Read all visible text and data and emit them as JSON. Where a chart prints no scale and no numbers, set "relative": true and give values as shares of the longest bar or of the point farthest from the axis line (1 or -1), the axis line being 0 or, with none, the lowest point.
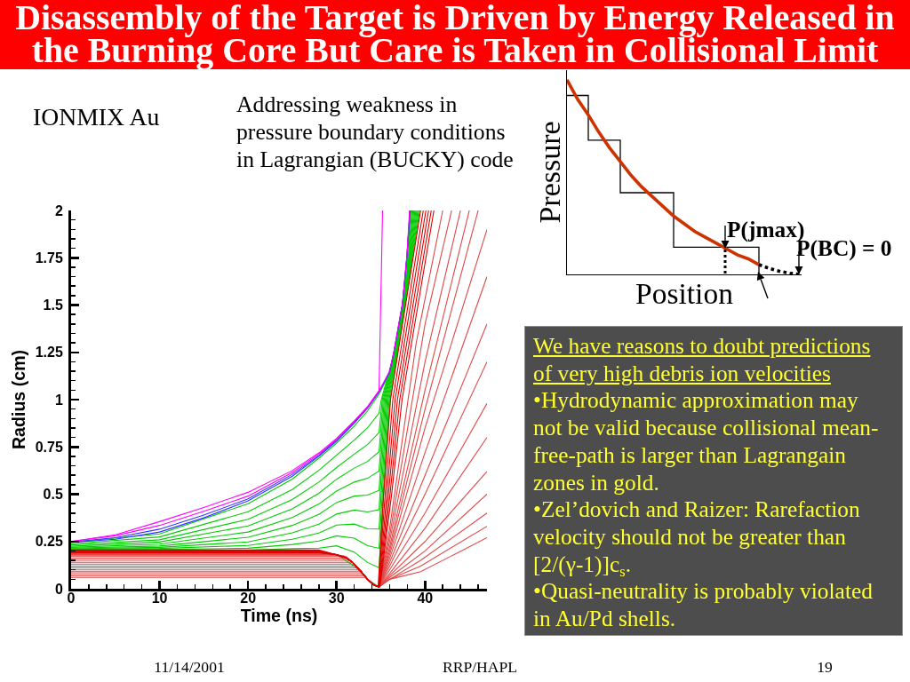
{
  "chart_data": [
    {
      "type": "line",
      "title": "Disassembly of the Target is Driven by Energy Released in the Burning Core But Care is Taken in Collisional Limit",
      "xlabel": "Time (ns)",
      "ylabel": "Radius (cm)",
      "xlim": [
        0,
        47
      ],
      "ylim": [
        0,
        2
      ],
      "xticks": [
        0,
        {
          "value": 2,
          "label": null
        },
        {
          "value": 4,
          "label": null
        },
        {
          "value": 6,
          "label": null
        },
        {
          "value": 8,
          "label": null
        },
        10,
        {
          "value": 12,
          "label": null
        },
        {
          "value": 14,
          "label": null
        },
        {
          "value": 16,
          "label": null
        },
        {
          "value": 18,
          "label": null
        },
        20,
        {
          "value": 22,
          "label": null
        },
        {
          "value": 24,
          "label": null
        },
        {
          "value": 26,
          "label": null
        },
        {
          "value": 28,
          "label": null
        },
        30,
        {
          "value": 32,
          "label": null
        },
        {
          "value": 34,
          "label": null
        },
        {
          "value": 36,
          "label": null
        },
        {
          "value": 38,
          "label": null
        },
        40,
        {
          "value": 42,
          "label": null
        },
        {
          "value": 44,
          "label": null
        },
        {
          "value": 46,
          "label": null
        }
      ],
      "yticks": [
        0,
        {
          "value": 0.05,
          "label": null
        },
        {
          "value": 0.1,
          "label": null
        },
        {
          "value": 0.15,
          "label": null
        },
        {
          "value": 0.2,
          "label": null
        },
        0.25,
        {
          "value": 0.3,
          "label": null
        },
        {
          "value": 0.35,
          "label": null
        },
        {
          "value": 0.4,
          "label": null
        },
        {
          "value": 0.45,
          "label": null
        },
        0.5,
        {
          "value": 0.55,
          "label": null
        },
        {
          "value": 0.6,
          "label": null
        },
        {
          "value": 0.65,
          "label": null
        },
        {
          "value": 0.7,
          "label": null
        },
        0.75,
        {
          "value": 0.8,
          "label": null
        },
        {
          "value": 0.85,
          "label": null
        },
        {
          "value": 0.9,
          "label": null
        },
        {
          "value": 0.95,
          "label": null
        },
        1,
        {
          "value": 1.05,
          "label": null
        },
        {
          "value": 1.1,
          "label": null
        },
        {
          "value": 1.15,
          "label": null
        },
        {
          "value": 1.2,
          "label": null
        },
        1.25,
        {
          "value": 1.3,
          "label": null
        },
        {
          "value": 1.35,
          "label": null
        },
        {
          "value": 1.4,
          "label": null
        },
        {
          "value": 1.45,
          "label": null
        },
        1.5,
        {
          "value": 1.55,
          "label": null
        },
        {
          "value": 1.6,
          "label": null
        },
        {
          "value": 1.65,
          "label": null
        },
        {
          "value": 1.7,
          "label": null
        },
        1.75,
        {
          "value": 1.8,
          "label": null
        },
        {
          "value": 1.85,
          "label": null
        },
        {
          "value": 1.9,
          "label": null
        },
        {
          "value": 1.95,
          "label": null
        },
        2
      ],
      "annotations": [
        "IONMIX Au",
        "Addressing weakness in pressure boundary conditions in Lagrangian (BUCKY) code",
        "11/14/2001",
        "RRP/HAPL",
        "19"
      ],
      "series": [
        {
          "color": "#00cc00",
          "x": [
            0,
            10,
            20,
            25,
            28,
            30,
            32,
            33.5,
            34.8,
            35.5,
            36.7,
            37.6,
            38.27,
            38.85,
            null,
            0,
            10,
            20,
            25,
            28,
            30,
            32,
            33.5,
            34.8,
            35.39,
            36.66,
            37.57,
            38.2,
            38.74,
            null,
            0,
            10,
            20,
            25,
            28,
            30,
            32,
            33.5,
            34.8,
            35.28,
            36.62,
            37.54,
            38.14,
            38.63,
            null,
            0,
            10,
            20,
            25,
            28,
            30,
            32,
            33.5,
            34.8,
            35.17,
            36.58,
            37.51,
            38.08,
            38.52,
            null,
            0,
            10,
            20,
            25,
            28,
            30,
            32,
            33.5,
            34.8,
            35.06,
            36.54,
            37.48,
            38.01,
            38.41,
            null,
            0,
            10,
            20,
            25,
            28,
            30,
            32,
            33.5,
            34.8,
            36,
            36.5,
            37.45,
            37.95,
            38.3,
            null,
            0,
            10,
            20,
            25,
            28,
            30,
            32,
            33.5,
            34.8,
            35.61,
            36.74,
            37.63,
            38.33,
            38.96,
            null,
            0,
            10,
            20,
            25,
            28,
            30,
            32,
            33.5,
            34.8,
            35.72,
            36.78,
            37.66,
            38.39,
            39.07,
            null,
            0,
            10,
            20,
            25,
            28,
            30,
            32,
            33.5,
            34.8,
            35.83,
            36.82,
            37.69,
            38.45,
            39.18,
            null,
            0,
            10,
            20,
            25,
            28,
            30,
            32,
            33.5,
            34.8,
            35.94,
            36.86,
            37.72,
            38.52,
            39.29,
            null,
            0,
            10,
            20,
            25,
            28,
            30,
            32,
            33.5,
            34.8,
            35.3,
            36.05,
            36.9,
            37.75,
            38.58,
            39.4
          ],
          "values": [
            0.215,
            0.226,
            0.272,
            0.335,
            0.393,
            0.456,
            0.49,
            0.495,
            0.52,
            1,
            1.25,
            1.5,
            1.75,
            2,
            null,
            0.219,
            0.236,
            0.3,
            0.377,
            0.448,
            0.516,
            0.564,
            0.584,
            0.622,
            1,
            1.25,
            1.5,
            1.75,
            2,
            null,
            0.225,
            0.247,
            0.332,
            0.423,
            0.505,
            0.579,
            0.638,
            0.673,
            0.724,
            1,
            1.25,
            1.5,
            1.75,
            2,
            null,
            0.231,
            0.259,
            0.367,
            0.472,
            0.564,
            0.641,
            0.712,
            0.762,
            0.826,
            1,
            1.25,
            1.5,
            1.75,
            2,
            null,
            0.237,
            0.274,
            0.407,
            0.525,
            0.626,
            0.706,
            0.786,
            0.851,
            0.928,
            1,
            1.25,
            1.5,
            1.75,
            2,
            null,
            0.245,
            0.29,
            0.45,
            0.58,
            0.69,
            0.77,
            0.86,
            0.94,
            1.03,
            1.14,
            1.25,
            1.5,
            1.75,
            2,
            null,
            0.211,
            0.219,
            0.248,
            0.296,
            0.342,
            0.395,
            0.416,
            0.406,
            0.418,
            1,
            1.25,
            1.5,
            1.75,
            2,
            null,
            0.209,
            0.213,
            0.229,
            0.262,
            0.295,
            0.337,
            0.342,
            0.317,
            0.316,
            1,
            1.25,
            1.5,
            1.75,
            2,
            null,
            0.207,
            0.208,
            0.214,
            0.234,
            0.252,
            0.28,
            0.268,
            0.228,
            0.214,
            1,
            1.25,
            1.5,
            1.75,
            2,
            null,
            0.205,
            0.206,
            0.204,
            0.212,
            0.215,
            0.227,
            0.194,
            0.139,
            0.112,
            1,
            1.25,
            1.5,
            1.75,
            2,
            null,
            0.205,
            0.205,
            0.2,
            0.2,
            0.19,
            0.18,
            0.12,
            0.05,
            0.01,
            0.49,
            1,
            1.25,
            1.5,
            1.75,
            2
          ]
        },
        {
          "color": "#e04848",
          "x": [
            0,
            33.3,
            33.5,
            34.2,
            34.8,
            36,
            39.5,
            47,
            null,
            0,
            33.2,
            33.5,
            34.2,
            34.8,
            36,
            39.5,
            47,
            null,
            0,
            33,
            33.5,
            34.2,
            34.8,
            36,
            39.5,
            47,
            null,
            0,
            32.8,
            33.5,
            34.2,
            34.8,
            36,
            40,
            47,
            null,
            0,
            32.6,
            33.5,
            34.2,
            34.8,
            36,
            40,
            47,
            null,
            0,
            32.4,
            32.8,
            33.5,
            34.2,
            34.8,
            36,
            40,
            47,
            null,
            0,
            32.2,
            32.8,
            33.5,
            34.2,
            34.8,
            36,
            40,
            47,
            null,
            0,
            32,
            32.8,
            33.5,
            34.2,
            34.8,
            36,
            40,
            47,
            null,
            0,
            31.8,
            32.8,
            33.5,
            34.2,
            34.8,
            36,
            40,
            47,
            null,
            0,
            31.5,
            31.8,
            32.8,
            33.5,
            34.2,
            34.8,
            36,
            40,
            47,
            null,
            0,
            31.3,
            31.8,
            32.8,
            33.5,
            34.2,
            34.8,
            36,
            40,
            47,
            null,
            0,
            31.1,
            31.8,
            32.8,
            33.5,
            34.2,
            34.8,
            36,
            40,
            46,
            null,
            0,
            30.8,
            31.8,
            32.8,
            33.5,
            34.2,
            34.8,
            36,
            40,
            45,
            null,
            0,
            30,
            31,
            31.8,
            32.8,
            33.5,
            34.2,
            34.8,
            36,
            40,
            44,
            null,
            0,
            29,
            30,
            31,
            31.8,
            32.8,
            33.5,
            34.2,
            34.8,
            36,
            40,
            43,
            null,
            0,
            28.5,
            30,
            31,
            31.8,
            32.8,
            33.5,
            34.2,
            34.8,
            36,
            39,
            42
          ],
          "values": [
            0.06,
            0.06,
            0.05,
            0.02,
            0.01,
            0.05,
            0.09,
            0.27,
            null,
            0.07,
            0.07,
            0.05,
            0.02,
            0.01,
            0.05,
            0.12,
            0.33,
            null,
            0.08,
            0.08,
            0.05,
            0.02,
            0.01,
            0.05,
            0.15,
            0.4,
            null,
            0.09,
            0.09,
            0.05,
            0.02,
            0.01,
            0.06,
            0.2,
            0.5,
            null,
            0.1,
            0.1,
            0.05,
            0.02,
            0.01,
            0.07,
            0.25,
            0.62,
            null,
            0.11,
            0.11,
            0.09,
            0.05,
            0.02,
            0.01,
            0.08,
            0.32,
            0.8,
            null,
            0.12,
            0.12,
            0.09,
            0.05,
            0.02,
            0.01,
            0.1,
            0.4,
            0.98,
            null,
            0.13,
            0.13,
            0.09,
            0.05,
            0.02,
            0.01,
            0.12,
            0.5,
            1.2,
            null,
            0.14,
            0.14,
            0.09,
            0.05,
            0.02,
            0.01,
            0.14,
            0.6,
            1.4,
            null,
            0.15,
            0.15,
            0.14,
            0.09,
            0.05,
            0.02,
            0.01,
            0.16,
            0.72,
            1.65,
            null,
            0.16,
            0.16,
            0.14,
            0.09,
            0.05,
            0.02,
            0.01,
            0.18,
            0.85,
            1.9,
            null,
            0.17,
            0.17,
            0.14,
            0.09,
            0.05,
            0.02,
            0.01,
            0.2,
            0.95,
            2,
            null,
            0.175,
            0.175,
            0.14,
            0.09,
            0.05,
            0.02,
            0.01,
            0.22,
            1.05,
            2,
            null,
            0.18,
            0.18,
            0.165,
            0.14,
            0.09,
            0.05,
            0.02,
            0.01,
            0.25,
            1.2,
            2,
            null,
            0.185,
            0.185,
            0.18,
            0.165,
            0.14,
            0.09,
            0.05,
            0.02,
            0.01,
            0.28,
            1.4,
            2,
            null,
            0.188,
            0.188,
            0.18,
            0.165,
            0.14,
            0.09,
            0.05,
            0.02,
            0.01,
            0.32,
            1.3,
            2
          ]
        },
        {
          "color": "#dd0000",
          "x": [
            0,
            28,
            30,
            31,
            31.8,
            32.8,
            33.5,
            34.2,
            34.7,
            35.3,
            36.1,
            39.5,
            null,
            0,
            28,
            30,
            31,
            31.8,
            32.8,
            33.5,
            34.2,
            34.74,
            35.48,
            36.36,
            39.8,
            null,
            0,
            28,
            30,
            31,
            31.8,
            32.8,
            33.5,
            34.2,
            34.78,
            35.66,
            36.62,
            40.1,
            null,
            0,
            28,
            30,
            31,
            31.8,
            32.8,
            33.5,
            34.2,
            34.82,
            35.84,
            36.88,
            40.4,
            null,
            0,
            28,
            30,
            31,
            31.8,
            32.8,
            33.5,
            34.2,
            34.86,
            36.02,
            37.14,
            40.7,
            null,
            0,
            28,
            30,
            31,
            31.8,
            32.8,
            33.5,
            34.2,
            34.9,
            36.2,
            37.4,
            41
          ],
          "values": [
            0.205,
            0.205,
            0.18,
            0.165,
            0.14,
            0.09,
            0.05,
            0.02,
            0.01,
            0.49,
            1,
            2,
            null,
            0.202,
            0.202,
            0.18,
            0.165,
            0.14,
            0.09,
            0.05,
            0.02,
            0.01,
            0.49,
            1,
            2,
            null,
            0.199,
            0.199,
            0.18,
            0.165,
            0.14,
            0.09,
            0.05,
            0.02,
            0.01,
            0.49,
            1,
            2,
            null,
            0.196,
            0.196,
            0.18,
            0.165,
            0.14,
            0.09,
            0.05,
            0.02,
            0.01,
            0.49,
            1,
            2,
            null,
            0.193,
            0.193,
            0.18,
            0.165,
            0.14,
            0.09,
            0.05,
            0.02,
            0.01,
            0.49,
            1,
            2,
            null,
            0.19,
            0.19,
            0.18,
            0.165,
            0.14,
            0.09,
            0.05,
            0.02,
            0.01,
            0.49,
            1,
            2
          ]
        },
        {
          "color": "#3333ff",
          "x": [
            0,
            5,
            10,
            15,
            20,
            25,
            28,
            30,
            32,
            33.5,
            34.8,
            36,
            36.5,
            37.45,
            37.95,
            38.3,
            null,
            0,
            5,
            10,
            15,
            20,
            25,
            28,
            30,
            32,
            33.5,
            34.8,
            36,
            36.5,
            37.45,
            37.95,
            38.3
          ],
          "values": [
            0.245,
            0.262,
            0.3,
            0.375,
            0.465,
            0.595,
            0.7,
            0.78,
            0.875,
            0.955,
            1.04,
            1.145,
            1.255,
            1.505,
            1.755,
            2,
            null,
            0.248,
            0.27,
            0.315,
            0.39,
            0.475,
            0.605,
            0.705,
            0.785,
            0.88,
            0.958,
            1.042,
            1.147,
            1.257,
            1.507,
            1.757,
            2
          ]
        },
        {
          "color": "#ff00ff",
          "x": [
            0,
            5,
            10,
            15,
            20,
            25,
            28,
            30,
            32,
            33.5,
            34.8,
            36,
            36.5,
            37.45,
            37.95,
            38.25,
            null,
            0,
            5,
            10,
            15,
            20,
            25,
            28,
            30,
            32,
            33.5,
            34.8,
            35.2
          ],
          "values": [
            0.25,
            0.28,
            0.335,
            0.41,
            0.49,
            0.615,
            0.712,
            0.79,
            0.885,
            0.96,
            1.045,
            1.15,
            1.26,
            1.51,
            1.76,
            2,
            null,
            0.25,
            0.285,
            0.355,
            0.43,
            0.51,
            0.625,
            0.718,
            0.795,
            0.888,
            0.963,
            1.048,
            2
          ]
        }
      ]
    },
    {
      "type": "line",
      "relative": true,
      "xlabel": "Position",
      "ylabel": "Pressure",
      "categories": [
        null,
        null,
        null,
        null,
        null,
        null,
        null,
        null,
        null,
        null,
        null,
        null,
        null,
        null,
        null,
        null,
        null,
        null,
        null,
        null,
        null,
        null,
        null
      ],
      "annotations": [
        "P(jmax)",
        "P(BC) = 0"
      ],
      "series": [
        {
          "type": "step",
          "color": "#000000",
          "values": [
            0.92,
            0.92,
            0.69,
            0.69,
            0.69,
            0.42,
            0.42,
            0.42,
            0.42,
            0.42,
            0.14,
            0.14,
            0.14,
            0.14,
            0.14,
            0.14,
            0.14,
            0.14,
            0,
            null,
            null,
            null,
            null
          ]
        },
        {
          "color": "#cc3300",
          "values": [
            1,
            0.9,
            0.82,
            0.73,
            0.65,
            0.58,
            0.51,
            0.45,
            0.4,
            0.35,
            0.3,
            0.26,
            0.22,
            0.19,
            0.16,
            0.13,
            0.1,
            0.08,
            0.05,
            null,
            null,
            null,
            null
          ]
        },
        {
          "color": "#000000",
          "line_style": "dotted",
          "values": [
            null,
            null,
            null,
            null,
            null,
            null,
            null,
            null,
            null,
            null,
            null,
            null,
            null,
            null,
            null,
            null,
            null,
            null,
            0.05,
            0.03,
            0.015,
            0.005,
            0
          ]
        }
      ]
    },
    {
      "type": "other",
      "title": "We have reasons to doubt predictions of very high debris ion velocities",
      "annotations": [
        "•Hydrodynamic approximation may not be valid because collisional mean-free-path is larger than Lagrangain zones in gold.",
        "•Zel’dovich and Raizer: Rarefaction velocity should not be greater than [2/(γ-1)]c$_{s}$.",
        "•Quasi-neutrality is probably violated in Au/Pd shells."
      ]
    }
  ]
}
